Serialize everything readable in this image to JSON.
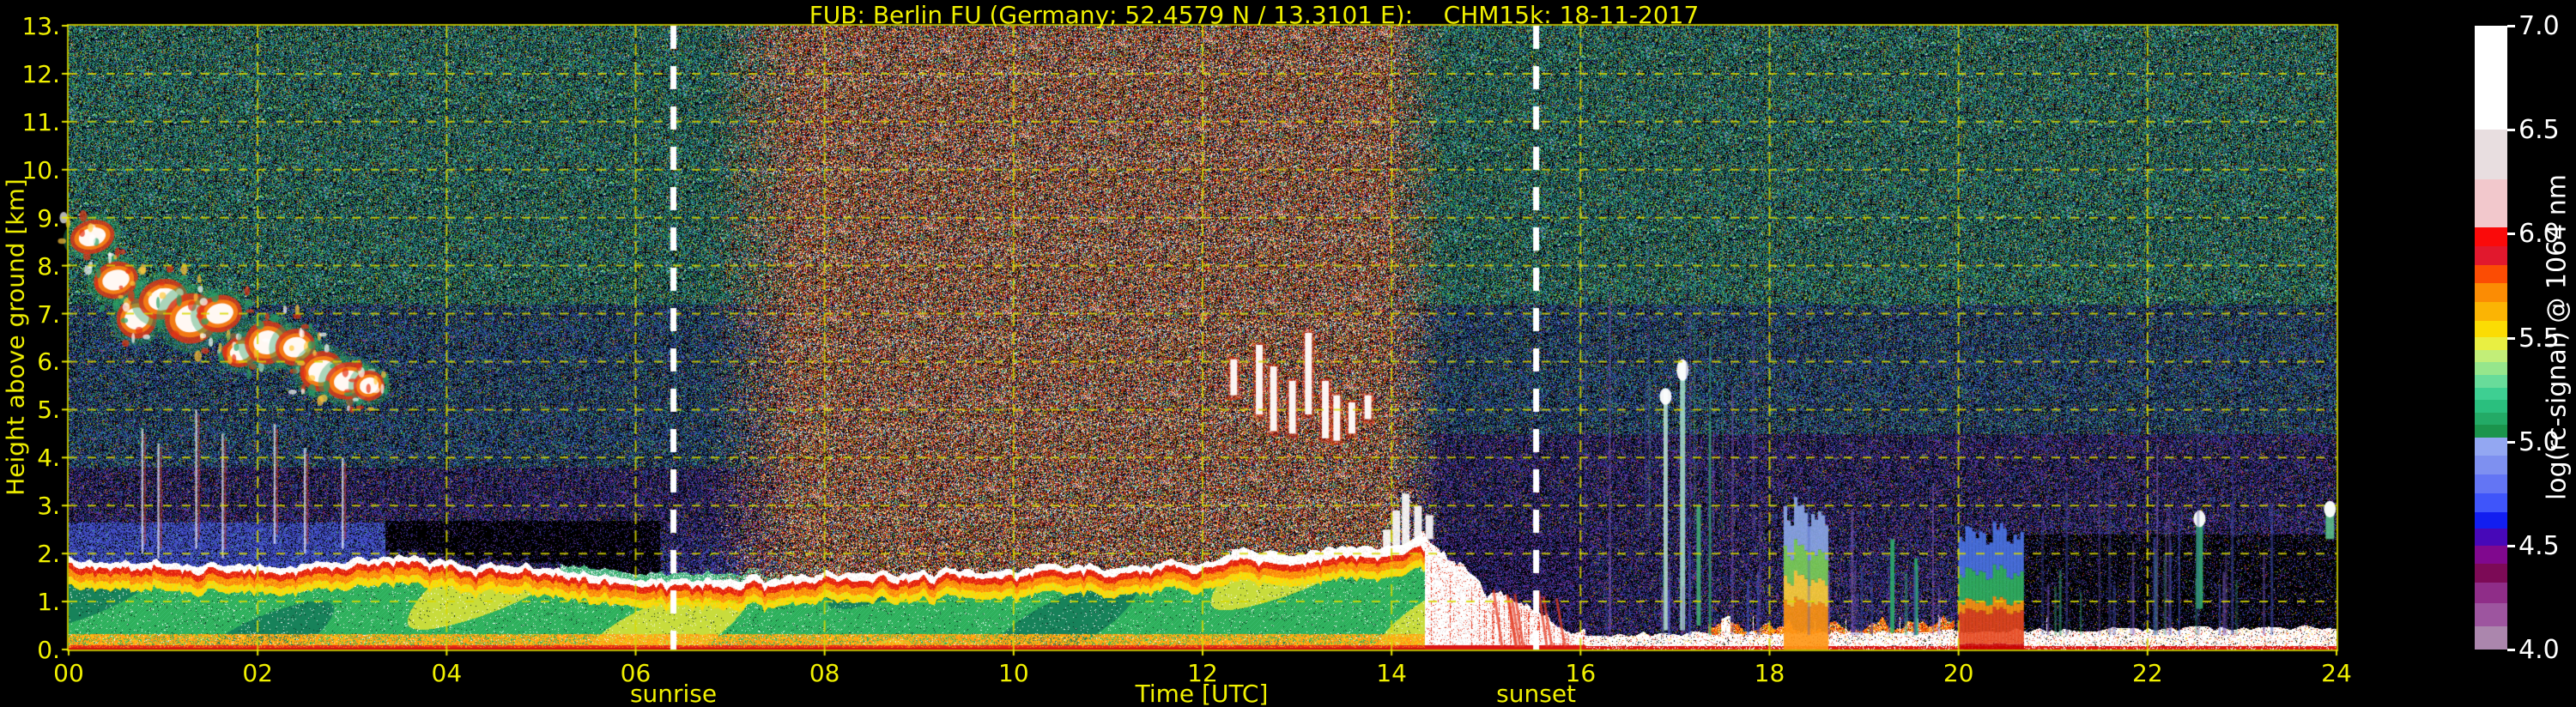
{
  "chart_data": {
    "type": "heatmap",
    "title": "FUB: Berlin FU (Germany; 52.4579 N / 13.3101 E):    CHM15k: 18-11-2017",
    "station": "Berlin FU",
    "country": "Germany",
    "latitude": "52.4579 N",
    "longitude": "13.3101 E",
    "instrument": "CHM15k",
    "date": "18-11-2017",
    "xlabel": "Time [UTC]",
    "ylabel": "Height above ground [km]",
    "colorbar_label": "log(rc-signal) @ 1064 nm",
    "x_range_hours": [
      0,
      24
    ],
    "y_range_km": [
      0,
      13
    ],
    "x_ticks": [
      "00",
      "02",
      "04",
      "06",
      "08",
      "10",
      "12",
      "14",
      "16",
      "18",
      "20",
      "22",
      "24"
    ],
    "y_ticks": [
      "0.",
      "1.",
      "2.",
      "3.",
      "4.",
      "5.",
      "6.",
      "7.",
      "8.",
      "9.",
      "10.",
      "11.",
      "12.",
      "13."
    ],
    "grid": {
      "color": "#d8d800",
      "x_step_hours": 2,
      "y_step_km": 1,
      "style": "dashed"
    },
    "annotations": [
      {
        "label": "sunrise",
        "time_utc": 6.4,
        "line": "white-dashed"
      },
      {
        "label": "sunset",
        "time_utc": 15.53,
        "line": "white-dashed"
      }
    ],
    "colorbar": {
      "range": [
        4.0,
        7.0
      ],
      "ticks": [
        "7.0",
        "6.5",
        "6.0",
        "5.5",
        "5.0",
        "4.5",
        "4.0"
      ],
      "tick_values": [
        7.0,
        6.5,
        6.0,
        5.5,
        5.0,
        4.5,
        4.0
      ],
      "segments": [
        [
          7.0,
          6.5,
          "#ffffff"
        ],
        [
          6.5,
          6.26,
          "#e8dee0"
        ],
        [
          6.26,
          6.03,
          "#f2c8cc"
        ],
        [
          6.03,
          5.94,
          "#fa0a0a"
        ],
        [
          5.94,
          5.85,
          "#e1182d"
        ],
        [
          5.85,
          5.76,
          "#fb4c04"
        ],
        [
          5.76,
          5.67,
          "#fb8c04"
        ],
        [
          5.67,
          5.58,
          "#fbb404"
        ],
        [
          5.58,
          5.5,
          "#fbdc04"
        ],
        [
          5.5,
          5.44,
          "#e9ef42"
        ],
        [
          5.44,
          5.38,
          "#c2ee78"
        ],
        [
          5.38,
          5.32,
          "#96e68c"
        ],
        [
          5.32,
          5.26,
          "#68dc9a"
        ],
        [
          5.26,
          5.2,
          "#3ecf92"
        ],
        [
          5.2,
          5.14,
          "#2abf7e"
        ],
        [
          5.14,
          5.08,
          "#23aa66"
        ],
        [
          5.08,
          5.02,
          "#1b944c"
        ],
        [
          5.02,
          4.93,
          "#93a7f2"
        ],
        [
          4.93,
          4.84,
          "#7e90f0"
        ],
        [
          4.84,
          4.75,
          "#6375f4"
        ],
        [
          4.75,
          4.66,
          "#3f55fa"
        ],
        [
          4.66,
          4.58,
          "#121ef0"
        ],
        [
          4.58,
          4.5,
          "#4708b8"
        ],
        [
          4.5,
          4.41,
          "#80088e"
        ],
        [
          4.41,
          4.32,
          "#7c0a56"
        ],
        [
          4.32,
          4.22,
          "#8f2d88"
        ],
        [
          4.22,
          4.11,
          "#9d559f"
        ],
        [
          4.11,
          4.0,
          "#ab86ad"
        ]
      ]
    },
    "features": [
      {
        "name": "boundary_layer_aerosol",
        "time_utc": [
          0,
          14.4
        ],
        "height_km": [
          0,
          2.3
        ],
        "signal": "strong backscatter, white-capped green/orange layer"
      },
      {
        "name": "cirrus_cloud_field",
        "time_utc": [
          0.1,
          3.3
        ],
        "height_km": [
          5,
          9
        ],
        "signal": "descending ice-cloud patches with fall streaks"
      },
      {
        "name": "daylight_background_noise",
        "time_utc": [
          6.9,
          14.5
        ],
        "height_km": [
          1.5,
          13
        ],
        "signal": "reddish solar noise speckle"
      },
      {
        "name": "midday_cumulus_streaks",
        "time_utc": [
          12.3,
          14.1
        ],
        "height_km": [
          4.3,
          6.6
        ]
      },
      {
        "name": "precipitation_collapse",
        "time_utc": [
          14.3,
          16.1
        ],
        "height_km": [
          0,
          3.3
        ],
        "signal": "white saturated echoes to ground"
      },
      {
        "name": "surface_echo_band",
        "time_utc": [
          16.1,
          24
        ],
        "height_km": [
          0,
          0.6
        ]
      },
      {
        "name": "evening_rain_streaks",
        "time_utc": [
          16.2,
          23.9
        ],
        "height_km": [
          0.3,
          7
        ]
      },
      {
        "name": "aerosol_plume_tower",
        "time_utc": [
          18.15,
          18.62
        ],
        "height_km": [
          0,
          3.0
        ]
      },
      {
        "name": "aerosol_plume_low",
        "time_utc": [
          20.0,
          20.68
        ],
        "height_km": [
          0,
          2.4
        ]
      },
      {
        "name": "green_column_echo",
        "time_utc": [
          22.45,
          22.65
        ],
        "height_km": [
          0.85,
          2.9
        ]
      }
    ],
    "boundary_layer_top_km": [
      [
        0,
        1.85
      ],
      [
        1,
        1.8
      ],
      [
        2,
        1.78
      ],
      [
        3,
        1.84
      ],
      [
        3.5,
        1.9
      ],
      [
        4.2,
        1.8
      ],
      [
        5,
        1.72
      ],
      [
        6,
        1.5
      ],
      [
        6.6,
        1.42
      ],
      [
        7.2,
        1.5
      ],
      [
        8,
        1.58
      ],
      [
        9,
        1.62
      ],
      [
        10,
        1.68
      ],
      [
        11,
        1.72
      ],
      [
        11.8,
        1.8
      ],
      [
        12.5,
        2.0
      ],
      [
        13.2,
        2.05
      ],
      [
        13.8,
        2.15
      ],
      [
        14.35,
        2.3
      ]
    ],
    "precip_top_km": [
      [
        14.3,
        2.5
      ],
      [
        14.55,
        2.1
      ],
      [
        14.8,
        1.55
      ],
      [
        15.1,
        1.05
      ],
      [
        15.4,
        0.75
      ],
      [
        15.7,
        0.55
      ],
      [
        16.05,
        0.45
      ]
    ],
    "render": {
      "palettes": {
        "night_high": [
          [
            "#000000",
            26
          ],
          [
            "#1e7850",
            15
          ],
          [
            "#28a064",
            11
          ],
          [
            "#2d8c82",
            7
          ],
          [
            "#2d64a0",
            8
          ],
          [
            "#b4b400",
            5
          ],
          [
            "#c83c1e",
            3
          ],
          [
            "#50c8a0",
            5
          ],
          [
            "#3c78c8",
            6
          ],
          [
            "#e6e6e6",
            1
          ],
          [
            "#16284a",
            13
          ]
        ],
        "night_mid": [
          [
            "#000000",
            28
          ],
          [
            "#234a8c",
            13
          ],
          [
            "#2d5ac8",
            9
          ],
          [
            "#1e7850",
            7
          ],
          [
            "#28a064",
            5
          ],
          [
            "#3c3c96",
            8
          ],
          [
            "#b4b400",
            3
          ],
          [
            "#c83c1e",
            2
          ],
          [
            "#6446aa",
            5
          ],
          [
            "#50c8a0",
            3
          ],
          [
            "#141e3c",
            17
          ]
        ],
        "night_low": [
          [
            "#000000",
            34
          ],
          [
            "#28288c",
            11
          ],
          [
            "#3c3cb4",
            9
          ],
          [
            "#5a3ca0",
            8
          ],
          [
            "#782d96",
            5
          ],
          [
            "#234a8c",
            7
          ],
          [
            "#1e7850",
            3
          ],
          [
            "#b4b400",
            2
          ],
          [
            "#c83c1e",
            2
          ],
          [
            "#8c2d8c",
            4
          ],
          [
            "#0f1432",
            15
          ]
        ],
        "day": [
          [
            "#000000",
            22
          ],
          [
            "#c81e14",
            14
          ],
          [
            "#f0f0f0",
            10
          ],
          [
            "#e6a08c",
            7
          ],
          [
            "#dc6e28",
            8
          ],
          [
            "#ffc83c",
            4
          ],
          [
            "#2d64c8",
            6
          ],
          [
            "#28a064",
            6
          ],
          [
            "#b4b400",
            4
          ],
          [
            "#141e3c",
            8
          ],
          [
            "#96321e",
            9
          ],
          [
            "#50c8c8",
            2
          ]
        ],
        "evening_dense": [
          [
            "#000000",
            44
          ],
          [
            "#3c3cb4",
            10
          ],
          [
            "#5a3ca0",
            10
          ],
          [
            "#782d96",
            7
          ],
          [
            "#28288c",
            9
          ],
          [
            "#8c2d8c",
            5
          ],
          [
            "#234a8c",
            6
          ],
          [
            "#0f1432",
            9
          ]
        ],
        "sparse_black": [
          [
            "#000000",
            80
          ],
          [
            "#3c3cb4",
            4
          ],
          [
            "#5a3ca0",
            4
          ],
          [
            "#28288c",
            3
          ],
          [
            "#782d96",
            2
          ],
          [
            "#234a8c",
            3
          ],
          [
            "#1e7850",
            1
          ],
          [
            "#b4b400",
            1
          ],
          [
            "#c83c1e",
            1
          ]
        ],
        "dark_gap": [
          [
            "#000000",
            88
          ],
          [
            "#5a3ca0",
            4
          ],
          [
            "#3c3cb4",
            3
          ],
          [
            "#782d96",
            2
          ],
          [
            "#28288c",
            3
          ]
        ],
        "predawn_blue": [
          [
            "#4150c8",
            40
          ],
          [
            "#3c3cb4",
            18
          ],
          [
            "#5a78dc",
            10
          ],
          [
            "#000000",
            18
          ],
          [
            "#28288c",
            8
          ],
          [
            "#46aa78",
            3
          ],
          [
            "#0f1432",
            3
          ]
        ],
        "midday_blue": [
          [
            "#5a78c8",
            30
          ],
          [
            "#4664dc",
            12
          ],
          [
            "#46aa78",
            8
          ],
          [
            "#000000",
            28
          ],
          [
            "#141e3c",
            12
          ],
          [
            "#8ca0e6",
            10
          ]
        ],
        "orange_low": [
          [
            "#ff8c14",
            36
          ],
          [
            "#e63214",
            22
          ],
          [
            "#ffc814",
            14
          ],
          [
            "#ffffff",
            12
          ],
          [
            "#c82800",
            8
          ],
          [
            "#28a064",
            4
          ],
          [
            "#000000",
            4
          ]
        ]
      },
      "bl_colors": {
        "cap": "#ffffff",
        "cap2": "#efe3e3",
        "rim_red": [
          "#e6230f",
          "#ff5a28",
          "#c81e0a"
        ],
        "rim_orange": [
          "#ff8c0a",
          "#ffb414",
          "#e67814"
        ],
        "rim_yellow": [
          "#ffdc00",
          "#d7e632",
          "#ffc814"
        ],
        "body": [
          "#2db45a",
          "#28a050",
          "#3cc86e",
          "#1e9646",
          "#46c87d"
        ],
        "body_dark": "#17825a",
        "body_light": "#c8dc3c",
        "low_orange": [
          "#ff9614",
          "#ffc814"
        ],
        "low_red": "#e62814",
        "base": "#cd0d0d"
      },
      "precip_colors": {
        "white": "#ffffff",
        "shade": "#e8d8d8",
        "red": "#e64028",
        "base": "#dc1414"
      },
      "cirrus_blobs": [
        [
          0.25,
          8.6,
          0.5,
          1.0
        ],
        [
          0.5,
          7.7,
          0.5,
          1.1
        ],
        [
          0.72,
          6.9,
          0.45,
          1.2
        ],
        [
          1.0,
          7.3,
          0.55,
          1.2
        ],
        [
          1.3,
          6.9,
          0.6,
          1.5
        ],
        [
          1.6,
          7.0,
          0.5,
          1.1
        ],
        [
          1.82,
          6.2,
          0.4,
          0.9
        ],
        [
          2.1,
          6.4,
          0.5,
          1.3
        ],
        [
          2.4,
          6.3,
          0.45,
          1.1
        ],
        [
          2.68,
          5.8,
          0.5,
          1.2
        ],
        [
          2.95,
          5.6,
          0.5,
          1.1
        ],
        [
          3.18,
          5.5,
          0.35,
          0.9
        ]
      ],
      "fall_streaks": [
        [
          0.78,
          4.6,
          2.0
        ],
        [
          0.95,
          4.3,
          1.9
        ],
        [
          1.35,
          5.0,
          2.1
        ],
        [
          1.63,
          4.5,
          1.9
        ],
        [
          2.18,
          4.7,
          2.2
        ],
        [
          2.5,
          4.2,
          2.0
        ],
        [
          2.9,
          4.0,
          2.1
        ]
      ],
      "day_clouds": [
        [
          12.33,
          5.3,
          6.05
        ],
        [
          12.6,
          4.9,
          6.35
        ],
        [
          12.75,
          4.55,
          5.9
        ],
        [
          12.95,
          4.5,
          5.6
        ],
        [
          13.12,
          4.9,
          6.6
        ],
        [
          13.3,
          4.4,
          5.6
        ],
        [
          13.42,
          4.35,
          5.3
        ],
        [
          13.58,
          4.5,
          5.15
        ],
        [
          13.75,
          4.8,
          5.3
        ]
      ],
      "precip_spikes": [
        [
          13.95,
          2.0,
          2.5
        ],
        [
          14.05,
          2.0,
          2.9
        ],
        [
          14.15,
          2.1,
          3.25
        ],
        [
          14.28,
          2.2,
          3.0
        ],
        [
          14.4,
          2.3,
          2.8
        ]
      ],
      "towers": [
        {
          "t0": 18.15,
          "t1": 18.62,
          "layers": [
            [
              0,
              1.0,
              "#ff9614"
            ],
            [
              1.0,
              1.5,
              "#ffd23c"
            ],
            [
              1.5,
              2.1,
              "#7dd25a"
            ],
            [
              2.1,
              2.9,
              "#8ca8e8"
            ]
          ],
          "alpha": 0.9
        },
        {
          "t0": 20.0,
          "t1": 20.68,
          "layers": [
            [
              0,
              0.12,
              "#c80000"
            ],
            [
              0.12,
              0.8,
              "#e6461e"
            ],
            [
              0.8,
              1.0,
              "#ff9614"
            ],
            [
              1.0,
              1.6,
              "#32b464"
            ],
            [
              1.6,
              2.4,
              "#4b74e6"
            ]
          ],
          "alpha": 0.92
        }
      ],
      "major_streaks": [
        [
          16.9,
          0.4,
          5.4,
          "#bfe8d8",
          5
        ],
        [
          17.08,
          0.4,
          6.0,
          "#a8e0cc",
          6
        ],
        [
          17.25,
          0.5,
          3.0,
          "#46b478",
          5
        ],
        [
          19.3,
          0.35,
          2.3,
          "#2eb46e",
          5
        ],
        [
          19.55,
          0.3,
          1.9,
          "#2eb46e",
          4
        ],
        [
          22.55,
          0.85,
          2.8,
          "#35b478",
          8
        ],
        [
          23.93,
          2.3,
          3.05,
          "#60c890",
          10
        ]
      ],
      "white_caps": [
        [
          22.55,
          2.55,
          2.9
        ],
        [
          23.93,
          2.75,
          3.1
        ],
        [
          16.9,
          5.1,
          5.45
        ],
        [
          17.08,
          5.6,
          6.05
        ]
      ],
      "streak_colors": [
        "#4658c8",
        "#6e50b4",
        "#37a078",
        "#8c64c8",
        "#3c46a0"
      ]
    }
  }
}
